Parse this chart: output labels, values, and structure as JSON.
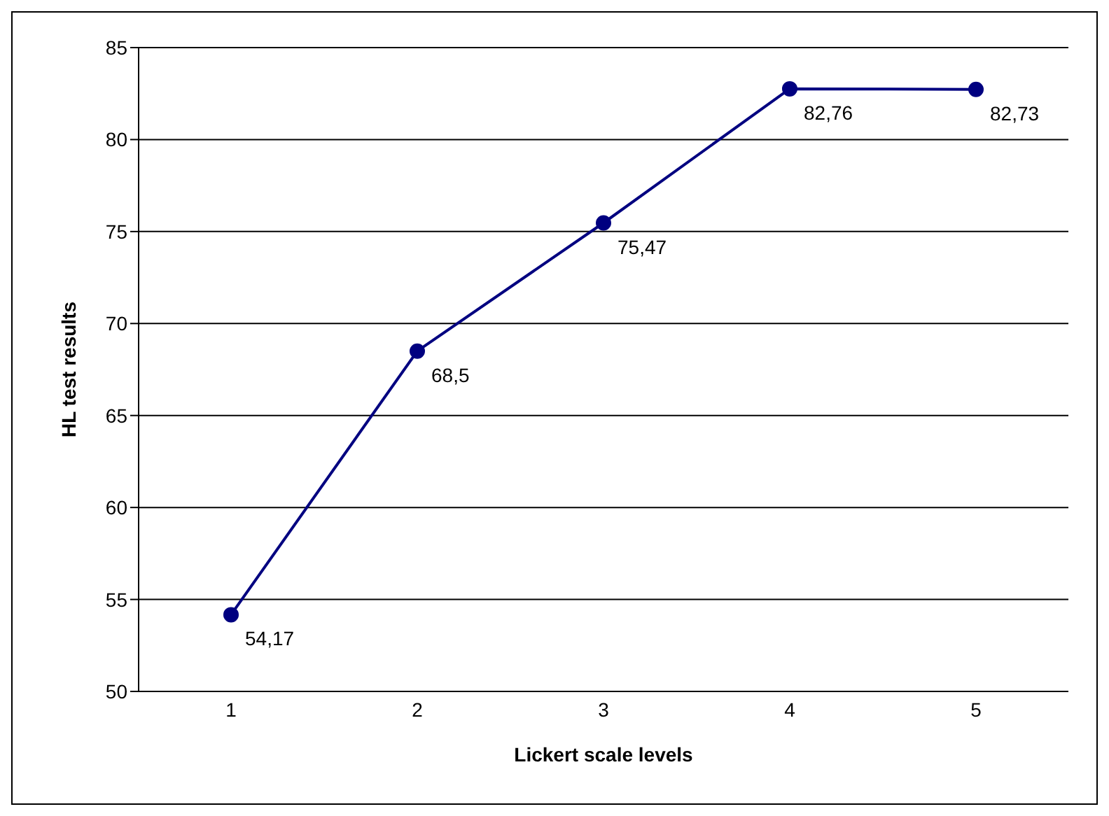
{
  "chart_data": {
    "type": "line",
    "xlabel": "Lickert scale levels",
    "ylabel": "HL test results",
    "categories": [
      "1",
      "2",
      "3",
      "4",
      "5"
    ],
    "series": [
      {
        "color": "#000080",
        "values": [
          54.17,
          68.5,
          75.47,
          82.76,
          82.73
        ],
        "value_labels": [
          "54,17",
          "68,5",
          "75,47",
          "82,76",
          "82,73"
        ]
      }
    ],
    "ylim": [
      50,
      85
    ],
    "yticks": [
      50,
      55,
      60,
      65,
      70,
      75,
      80,
      85
    ],
    "grid": "y",
    "marker": "circle",
    "line_style": "solid",
    "legend": false
  }
}
